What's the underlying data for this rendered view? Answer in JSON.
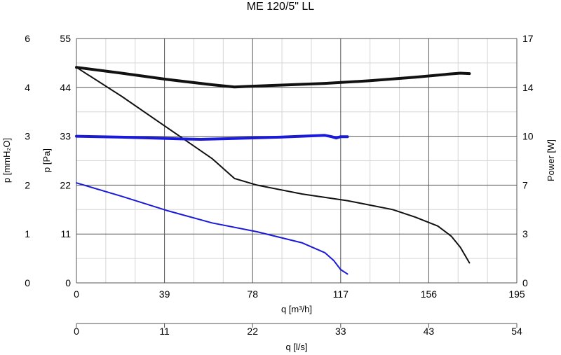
{
  "chart_data": {
    "type": "line",
    "title": "ME 120/5\" LL",
    "xlabel": "q [m³/h]",
    "xlabel2": "q [l/s]",
    "ylabel_left_outer": "p [mmH₂O]",
    "ylabel_left_inner": "p [Pa]",
    "ylabel_right": "Power [W]",
    "xlim": [
      0,
      195
    ],
    "ylim": [
      0,
      55
    ],
    "xticks": [
      "0",
      "39",
      "78",
      "117",
      "156",
      "195"
    ],
    "x2ticks": [
      "0",
      "11",
      "22",
      "33",
      "43",
      "54"
    ],
    "yticks_pa": [
      "0",
      "11",
      "22",
      "33",
      "44",
      "55"
    ],
    "yticks_mm": [
      "0",
      "1",
      "2",
      "3",
      "4",
      "6"
    ],
    "yticks_w": [
      "0",
      "3",
      "7",
      "10",
      "14",
      "17"
    ],
    "grid": true,
    "series": [
      {
        "color": "#111111",
        "width": 4,
        "axis": "pa",
        "x": [
          0,
          20,
          40,
          60,
          70,
          75,
          90,
          110,
          130,
          150,
          165,
          170,
          174
        ],
        "y": [
          48.5,
          47.2,
          45.8,
          44.6,
          44.1,
          44.2,
          44.5,
          44.9,
          45.5,
          46.3,
          47.0,
          47.2,
          47.1
        ]
      },
      {
        "color": "#111111",
        "width": 2,
        "axis": "pa",
        "x": [
          0,
          20,
          40,
          60,
          70,
          80,
          100,
          120,
          140,
          150,
          160,
          166,
          170,
          174
        ],
        "y": [
          48.5,
          42,
          35,
          28,
          23.5,
          22,
          20,
          18.5,
          16.5,
          14.8,
          12.8,
          10.5,
          8,
          4.5
        ]
      },
      {
        "color": "#1a1ad9",
        "width": 4,
        "axis": "pa",
        "x": [
          0,
          20,
          40,
          55,
          70,
          90,
          110,
          113,
          115,
          117,
          120
        ],
        "y": [
          33,
          32.8,
          32.5,
          32.3,
          32.5,
          32.8,
          33.2,
          32.9,
          32.6,
          32.9,
          32.9
        ]
      },
      {
        "color": "#1a1ad9",
        "width": 2,
        "axis": "pa",
        "x": [
          0,
          20,
          40,
          60,
          80,
          100,
          110,
          114,
          117,
          120
        ],
        "y": [
          22.5,
          19.5,
          16.3,
          13.5,
          11.5,
          9,
          6.8,
          5,
          3,
          2
        ]
      }
    ]
  }
}
